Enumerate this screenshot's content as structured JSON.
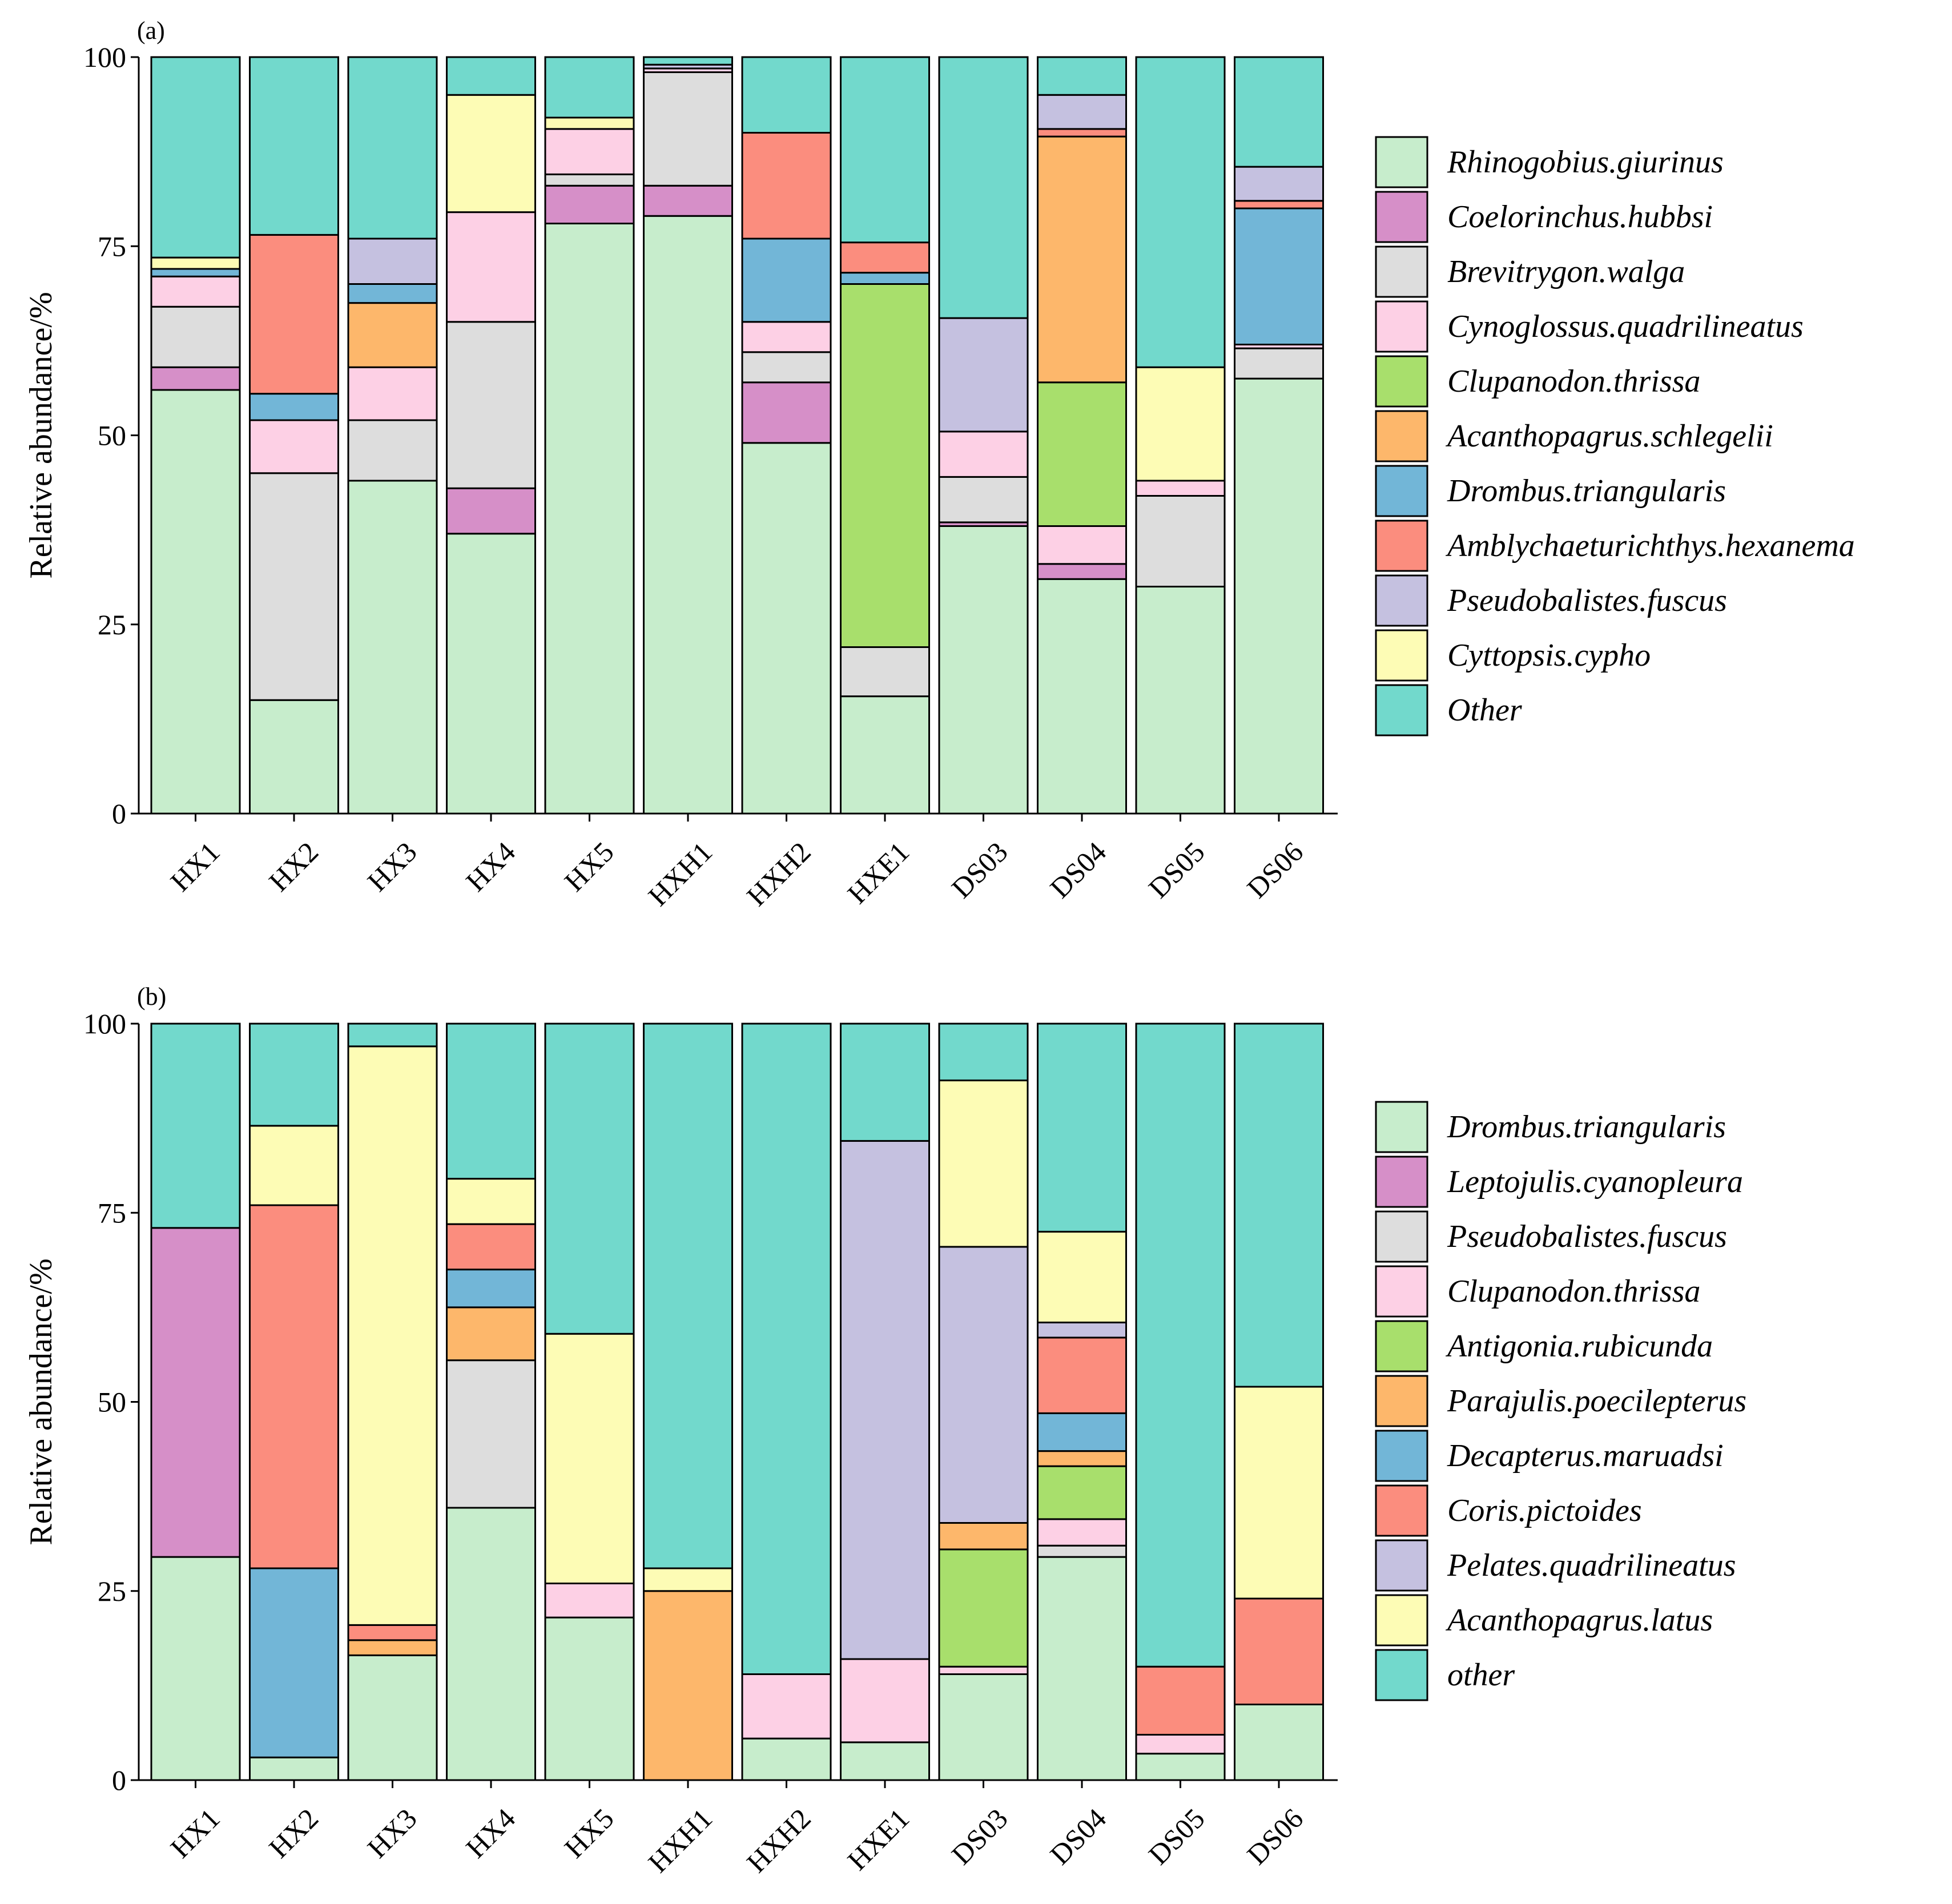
{
  "chart_data": [
    {
      "panel": "(a)",
      "type": "bar",
      "stacked": true,
      "ylabel": "Relative abundance/%",
      "ylim": [
        0,
        100
      ],
      "yticks": [
        0,
        25,
        50,
        75,
        100
      ],
      "categories": [
        "HX1",
        "HX2",
        "HX3",
        "HX4",
        "HX5",
        "HXH1",
        "HXH2",
        "HXE1",
        "DS03",
        "DS04",
        "DS05",
        "DS06"
      ],
      "legend_position": "right",
      "series": [
        {
          "name": "Rhinogobius.giurinus",
          "color": "#c7edcc",
          "values": [
            56,
            15,
            44,
            37,
            78,
            79,
            49,
            15.5,
            38,
            31,
            30,
            57.5
          ]
        },
        {
          "name": "Coelorinchus.hubbsi",
          "color": "#d68fc8",
          "values": [
            3,
            0,
            0,
            6,
            5,
            4,
            8,
            0,
            0.5,
            2,
            0,
            0
          ]
        },
        {
          "name": "Brevitrygon.walga",
          "color": "#dddddd",
          "values": [
            8,
            30,
            8,
            22,
            1.5,
            15,
            4,
            6.5,
            6,
            0,
            12,
            4
          ]
        },
        {
          "name": "Cynoglossus.quadrilineatus",
          "color": "#fdd0e5",
          "values": [
            4,
            7,
            7,
            14.5,
            6,
            0.5,
            4,
            0,
            6,
            5,
            2,
            0.5
          ]
        },
        {
          "name": "Clupanodon.thrissa",
          "color": "#a8df6c",
          "values": [
            0,
            0,
            0,
            0,
            0,
            0,
            0,
            48,
            0,
            19,
            0,
            0
          ]
        },
        {
          "name": "Acanthopagrus.schlegelii",
          "color": "#fdb76b",
          "values": [
            0,
            0,
            8.5,
            0,
            0,
            0,
            0,
            0,
            0,
            32.5,
            0,
            0
          ]
        },
        {
          "name": "Drombus.triangularis",
          "color": "#72b6d7",
          "values": [
            1,
            3.5,
            2.5,
            0,
            0,
            0,
            11,
            1.5,
            0,
            0,
            0,
            18
          ]
        },
        {
          "name": "Amblychaeturichthys.hexanema",
          "color": "#fb8d7e",
          "values": [
            0,
            21,
            0,
            0,
            0,
            0,
            14,
            4,
            0,
            1,
            0,
            1
          ]
        },
        {
          "name": "Pseudobalistes.fuscus",
          "color": "#c5c1e0",
          "values": [
            0,
            0,
            6,
            0,
            0,
            0.5,
            0,
            0,
            15,
            4.5,
            0,
            4.5
          ]
        },
        {
          "name": "Cyttopsis.cypho",
          "color": "#fdfcb5",
          "values": [
            1.5,
            0,
            0,
            15.5,
            1.5,
            0,
            0,
            0,
            0,
            0,
            15,
            0
          ]
        },
        {
          "name": "Other",
          "color": "#72d9cc",
          "values": [
            26.5,
            23.5,
            24,
            5,
            8,
            1,
            10,
            24.5,
            34.5,
            5,
            41,
            14.5
          ]
        }
      ]
    },
    {
      "panel": "(b)",
      "type": "bar",
      "stacked": true,
      "ylabel": "Relative abundance/%",
      "ylim": [
        0,
        100
      ],
      "yticks": [
        0,
        25,
        50,
        75,
        100
      ],
      "categories": [
        "HX1",
        "HX2",
        "HX3",
        "HX4",
        "HX5",
        "HXH1",
        "HXH2",
        "HXE1",
        "DS03",
        "DS04",
        "DS05",
        "DS06"
      ],
      "legend_position": "right",
      "series": [
        {
          "name": "Drombus.triangularis",
          "color": "#c7edcc",
          "values": [
            29.5,
            3,
            16.5,
            36,
            21.5,
            0,
            5.5,
            5,
            14,
            29.5,
            3.5,
            10
          ]
        },
        {
          "name": "Leptojulis.cyanopleura",
          "color": "#d68fc8",
          "values": [
            43.5,
            0,
            0,
            0,
            0,
            0,
            0,
            0,
            0,
            0,
            0,
            0
          ]
        },
        {
          "name": "Pseudobalistes.fuscus",
          "color": "#dddddd",
          "values": [
            0,
            0,
            0,
            19.5,
            0,
            0,
            0,
            0,
            0,
            1.5,
            0,
            0
          ]
        },
        {
          "name": "Clupanodon.thrissa",
          "color": "#fdd0e5",
          "values": [
            0,
            0,
            0,
            0,
            4.5,
            0,
            8.5,
            11,
            1,
            3.5,
            2.5,
            0
          ]
        },
        {
          "name": "Antigonia.rubicunda",
          "color": "#a8df6c",
          "values": [
            0,
            0,
            0,
            0,
            0,
            0,
            0,
            0,
            15.5,
            7,
            0,
            0
          ]
        },
        {
          "name": "Parajulis.poecilepterus",
          "color": "#fdb76b",
          "values": [
            0,
            0,
            2,
            7,
            0,
            25,
            0,
            0,
            3.5,
            2,
            0,
            0
          ]
        },
        {
          "name": "Decapterus.maruadsi",
          "color": "#72b6d7",
          "values": [
            0,
            25,
            0,
            5,
            0,
            0,
            0,
            0,
            0,
            5,
            0,
            0
          ]
        },
        {
          "name": "Coris.pictoides",
          "color": "#fb8d7e",
          "values": [
            0,
            48,
            2,
            6,
            0,
            0,
            0,
            0,
            0,
            10,
            9,
            14
          ]
        },
        {
          "name": "Pelates.quadrilineatus",
          "color": "#c5c1e0",
          "values": [
            0,
            0,
            0,
            0,
            0,
            0,
            0,
            68.5,
            36.5,
            2,
            0,
            0
          ]
        },
        {
          "name": "Acanthopagrus.latus",
          "color": "#fdfcb5",
          "values": [
            0,
            10.5,
            76.5,
            6,
            33,
            3,
            0,
            0,
            22,
            12,
            0,
            28
          ]
        },
        {
          "name": "other",
          "color": "#72d9cc",
          "values": [
            27,
            13.5,
            3,
            20.5,
            41,
            72,
            86,
            15.5,
            7.5,
            27.5,
            85,
            48
          ]
        }
      ]
    }
  ]
}
